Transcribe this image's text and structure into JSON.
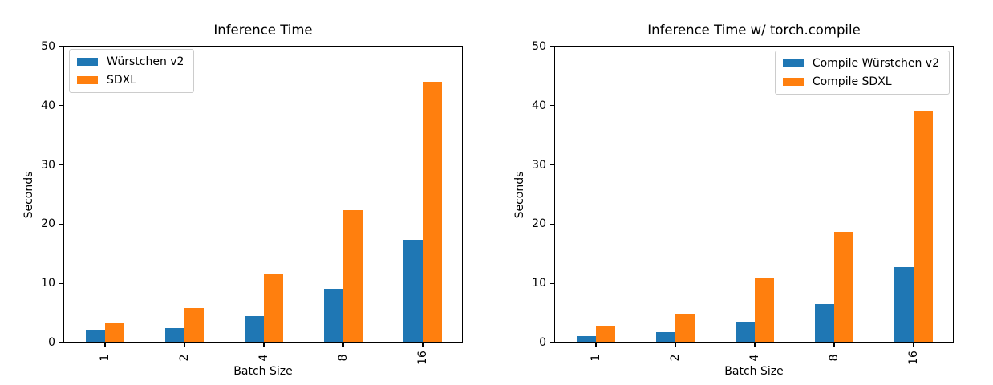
{
  "figure": {
    "background": "#ffffff",
    "text_color": "#000000",
    "axis_color": "#000000"
  },
  "chart_data": [
    {
      "type": "bar",
      "title": "Inference Time",
      "xlabel": "Batch Size",
      "ylabel": "Seconds",
      "categories": [
        "1",
        "2",
        "4",
        "8",
        "16"
      ],
      "series": [
        {
          "name": "Würstchen v2",
          "color": "#1f77b4",
          "values": [
            2.0,
            2.5,
            4.5,
            9.1,
            17.4
          ]
        },
        {
          "name": "SDXL",
          "color": "#ff7f0e",
          "values": [
            3.3,
            5.8,
            11.7,
            22.4,
            44.0
          ]
        }
      ],
      "ylim": [
        0,
        50
      ],
      "yticks": [
        0,
        10,
        20,
        30,
        40,
        50
      ],
      "x_tick_rotation": 90,
      "grid": false,
      "legend_position": "upper-left"
    },
    {
      "type": "bar",
      "title": "Inference Time w/ torch.compile",
      "xlabel": "Batch Size",
      "ylabel": "Seconds",
      "categories": [
        "1",
        "2",
        "4",
        "8",
        "16"
      ],
      "series": [
        {
          "name": "Compile Würstchen v2",
          "color": "#1f77b4",
          "values": [
            1.1,
            1.8,
            3.4,
            6.5,
            12.8
          ]
        },
        {
          "name": "Compile SDXL",
          "color": "#ff7f0e",
          "values": [
            2.8,
            4.9,
            10.9,
            18.7,
            39.0
          ]
        }
      ],
      "ylim": [
        0,
        50
      ],
      "yticks": [
        0,
        10,
        20,
        30,
        40,
        50
      ],
      "x_tick_rotation": 90,
      "grid": false,
      "legend_position": "upper-right"
    }
  ]
}
